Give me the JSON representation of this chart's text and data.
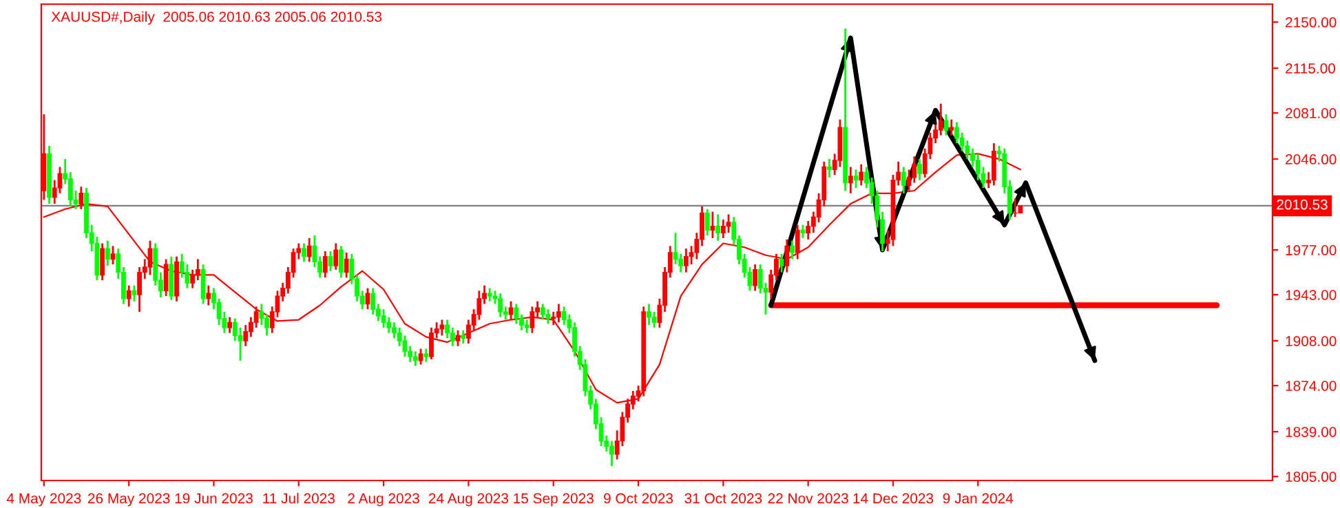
{
  "chart_data": {
    "type": "candlestick",
    "title": "XAUUSD#,Daily  2005.06 2010.63 2005.06 2010.53",
    "categories": [
      "4 May 2023",
      null,
      null,
      null,
      null,
      null,
      null,
      null,
      null,
      null,
      null,
      null,
      null,
      null,
      null,
      null,
      "26 May 2023",
      null,
      null,
      null,
      null,
      null,
      null,
      null,
      null,
      null,
      null,
      null,
      null,
      null,
      null,
      null,
      "19 Jun 2023",
      null,
      null,
      null,
      null,
      null,
      null,
      null,
      null,
      null,
      null,
      null,
      null,
      null,
      null,
      null,
      "11 Jul 2023",
      null,
      null,
      null,
      null,
      null,
      null,
      null,
      null,
      null,
      null,
      null,
      null,
      null,
      null,
      null,
      "2 Aug 2023",
      null,
      null,
      null,
      null,
      null,
      null,
      null,
      null,
      null,
      null,
      null,
      null,
      null,
      null,
      null,
      "24 Aug 2023",
      null,
      null,
      null,
      null,
      null,
      null,
      null,
      null,
      null,
      null,
      null,
      null,
      null,
      null,
      null,
      "15 Sep 2023",
      null,
      null,
      null,
      null,
      null,
      null,
      null,
      null,
      null,
      null,
      null,
      null,
      null,
      null,
      null,
      "9 Oct 2023",
      null,
      null,
      null,
      null,
      null,
      null,
      null,
      null,
      null,
      null,
      null,
      null,
      null,
      null,
      null,
      "31 Oct 2023",
      null,
      null,
      null,
      null,
      null,
      null,
      null,
      null,
      null,
      null,
      null,
      null,
      null,
      null,
      null,
      "22 Nov 2023",
      null,
      null,
      null,
      null,
      null,
      null,
      null,
      null,
      null,
      null,
      null,
      null,
      null,
      null,
      null,
      "14 Dec 2023",
      null,
      null,
      null,
      null,
      null,
      null,
      null,
      null,
      null,
      null,
      null,
      null,
      null,
      null,
      null,
      "9 Jan 2024",
      null,
      null,
      null,
      null,
      null,
      null,
      null,
      null,
      null,
      null,
      null,
      null,
      null,
      null,
      null,
      null,
      null,
      null,
      null,
      null,
      null,
      null,
      null,
      null,
      null,
      null,
      null,
      null,
      null,
      null,
      null,
      null,
      null,
      null,
      null,
      null,
      null,
      null,
      null,
      null,
      null,
      null,
      null,
      null,
      null,
      null,
      null,
      null,
      null,
      null,
      null,
      null,
      null,
      null,
      null
    ],
    "ohlc": [
      [
        2022,
        2080,
        2015,
        2050
      ],
      [
        2050,
        2056,
        2012,
        2017
      ],
      [
        2017,
        2030,
        2012,
        2024
      ],
      [
        2024,
        2040,
        2020,
        2035
      ],
      [
        2035,
        2046,
        2027,
        2031
      ],
      [
        2031,
        2036,
        2010,
        2015
      ],
      [
        2015,
        2022,
        2008,
        2012
      ],
      [
        2012,
        2025,
        2008,
        2020
      ],
      [
        2020,
        2024,
        1986,
        1990
      ],
      [
        1990,
        1996,
        1976,
        1982
      ],
      [
        1982,
        1987,
        1954,
        1958
      ],
      [
        1958,
        1982,
        1954,
        1978
      ],
      [
        1978,
        1984,
        1965,
        1970
      ],
      [
        1970,
        1980,
        1966,
        1974
      ],
      [
        1974,
        1978,
        1955,
        1960
      ],
      [
        1960,
        1964,
        1936,
        1940
      ],
      [
        1940,
        1950,
        1934,
        1946
      ],
      [
        1946,
        1950,
        1938,
        1943
      ],
      [
        1943,
        1964,
        1930,
        1960
      ],
      [
        1960,
        1970,
        1955,
        1964
      ],
      [
        1964,
        1984,
        1958,
        1978
      ],
      [
        1978,
        1982,
        1950,
        1954
      ],
      [
        1954,
        1960,
        1941,
        1946
      ],
      [
        1946,
        1970,
        1942,
        1966
      ],
      [
        1966,
        1972,
        1939,
        1942
      ],
      [
        1942,
        1972,
        1938,
        1968
      ],
      [
        1968,
        1974,
        1956,
        1960
      ],
      [
        1960,
        1966,
        1948,
        1952
      ],
      [
        1952,
        1962,
        1948,
        1958
      ],
      [
        1958,
        1970,
        1954,
        1962
      ],
      [
        1962,
        1966,
        1936,
        1940
      ],
      [
        1940,
        1950,
        1935,
        1944
      ],
      [
        1944,
        1948,
        1932,
        1937
      ],
      [
        1937,
        1940,
        1920,
        1925
      ],
      [
        1925,
        1930,
        1914,
        1918
      ],
      [
        1918,
        1926,
        1914,
        1922
      ],
      [
        1922,
        1925,
        1908,
        1912
      ],
      [
        1912,
        1918,
        1893,
        1908
      ],
      [
        1908,
        1920,
        1904,
        1915
      ],
      [
        1915,
        1926,
        1911,
        1922
      ],
      [
        1922,
        1934,
        1918,
        1930
      ],
      [
        1930,
        1936,
        1920,
        1925
      ],
      [
        1925,
        1928,
        1912,
        1918
      ],
      [
        1918,
        1934,
        1914,
        1930
      ],
      [
        1930,
        1946,
        1926,
        1942
      ],
      [
        1942,
        1952,
        1938,
        1948
      ],
      [
        1948,
        1964,
        1944,
        1960
      ],
      [
        1960,
        1978,
        1956,
        1975
      ],
      [
        1975,
        1982,
        1970,
        1978
      ],
      [
        1978,
        1982,
        1968,
        1972
      ],
      [
        1972,
        1986,
        1968,
        1980
      ],
      [
        1980,
        1988,
        1964,
        1968
      ],
      [
        1968,
        1972,
        1956,
        1960
      ],
      [
        1960,
        1976,
        1956,
        1972
      ],
      [
        1972,
        1976,
        1961,
        1965
      ],
      [
        1965,
        1982,
        1962,
        1977
      ],
      [
        1977,
        1980,
        1956,
        1960
      ],
      [
        1960,
        1975,
        1956,
        1970
      ],
      [
        1970,
        1974,
        1951,
        1955
      ],
      [
        1955,
        1958,
        1938,
        1942
      ],
      [
        1942,
        1946,
        1932,
        1936
      ],
      [
        1936,
        1948,
        1932,
        1944
      ],
      [
        1944,
        1948,
        1928,
        1932
      ],
      [
        1932,
        1936,
        1923,
        1927
      ],
      [
        1927,
        1932,
        1918,
        1922
      ],
      [
        1922,
        1926,
        1914,
        1918
      ],
      [
        1918,
        1922,
        1910,
        1914
      ],
      [
        1914,
        1918,
        1904,
        1908
      ],
      [
        1908,
        1912,
        1896,
        1900
      ],
      [
        1900,
        1904,
        1892,
        1896
      ],
      [
        1896,
        1900,
        1889,
        1893
      ],
      [
        1893,
        1902,
        1890,
        1898
      ],
      [
        1898,
        1902,
        1892,
        1896
      ],
      [
        1896,
        1918,
        1894,
        1914
      ],
      [
        1914,
        1922,
        1910,
        1917
      ],
      [
        1917,
        1924,
        1912,
        1920
      ],
      [
        1920,
        1924,
        1910,
        1914
      ],
      [
        1914,
        1918,
        1904,
        1908
      ],
      [
        1908,
        1916,
        1904,
        1912
      ],
      [
        1912,
        1916,
        1906,
        1910
      ],
      [
        1910,
        1924,
        1906,
        1920
      ],
      [
        1920,
        1932,
        1916,
        1928
      ],
      [
        1928,
        1946,
        1924,
        1940
      ],
      [
        1940,
        1950,
        1936,
        1944
      ],
      [
        1944,
        1948,
        1938,
        1942
      ],
      [
        1942,
        1946,
        1936,
        1940
      ],
      [
        1940,
        1944,
        1926,
        1930
      ],
      [
        1930,
        1934,
        1924,
        1928
      ],
      [
        1928,
        1938,
        1924,
        1933
      ],
      [
        1933,
        1936,
        1921,
        1925
      ],
      [
        1925,
        1928,
        1916,
        1920
      ],
      [
        1920,
        1924,
        1914,
        1918
      ],
      [
        1918,
        1934,
        1914,
        1930
      ],
      [
        1930,
        1938,
        1926,
        1933
      ],
      [
        1933,
        1936,
        1924,
        1928
      ],
      [
        1928,
        1932,
        1921,
        1925
      ],
      [
        1925,
        1930,
        1920,
        1926
      ],
      [
        1926,
        1936,
        1922,
        1930
      ],
      [
        1930,
        1934,
        1920,
        1924
      ],
      [
        1924,
        1928,
        1914,
        1918
      ],
      [
        1918,
        1922,
        1896,
        1900
      ],
      [
        1900,
        1904,
        1886,
        1890
      ],
      [
        1890,
        1894,
        1866,
        1870
      ],
      [
        1870,
        1874,
        1856,
        1860
      ],
      [
        1860,
        1864,
        1841,
        1845
      ],
      [
        1845,
        1850,
        1828,
        1832
      ],
      [
        1832,
        1836,
        1824,
        1828
      ],
      [
        1828,
        1832,
        1813,
        1822
      ],
      [
        1822,
        1840,
        1818,
        1832
      ],
      [
        1832,
        1854,
        1828,
        1850
      ],
      [
        1850,
        1864,
        1846,
        1860
      ],
      [
        1860,
        1870,
        1856,
        1866
      ],
      [
        1866,
        1874,
        1862,
        1870
      ],
      [
        1870,
        1934,
        1866,
        1930
      ],
      [
        1930,
        1936,
        1920,
        1926
      ],
      [
        1926,
        1930,
        1918,
        1922
      ],
      [
        1922,
        1940,
        1918,
        1935
      ],
      [
        1935,
        1964,
        1930,
        1960
      ],
      [
        1960,
        1980,
        1956,
        1975
      ],
      [
        1975,
        1990,
        1966,
        1970
      ],
      [
        1970,
        1974,
        1960,
        1965
      ],
      [
        1965,
        1978,
        1960,
        1972
      ],
      [
        1972,
        1980,
        1966,
        1975
      ],
      [
        1975,
        1990,
        1970,
        1985
      ],
      [
        1985,
        2010,
        1980,
        2005
      ],
      [
        2005,
        2008,
        1988,
        1992
      ],
      [
        1992,
        2006,
        1986,
        1995
      ],
      [
        1995,
        2004,
        1984,
        1990
      ],
      [
        1990,
        2000,
        1986,
        1995
      ],
      [
        1995,
        2004,
        1990,
        1998
      ],
      [
        1998,
        2002,
        1981,
        1985
      ],
      [
        1985,
        1988,
        1966,
        1970
      ],
      [
        1970,
        1974,
        1956,
        1960
      ],
      [
        1960,
        1964,
        1946,
        1950
      ],
      [
        1950,
        1966,
        1946,
        1962
      ],
      [
        1962,
        1966,
        1944,
        1948
      ],
      [
        1948,
        1952,
        1928,
        1945
      ],
      [
        1945,
        1962,
        1940,
        1958
      ],
      [
        1958,
        1974,
        1954,
        1970
      ],
      [
        1970,
        1974,
        1960,
        1965
      ],
      [
        1965,
        1985,
        1960,
        1980
      ],
      [
        1980,
        1984,
        1970,
        1975
      ],
      [
        1975,
        1996,
        1970,
        1992
      ],
      [
        1992,
        1996,
        1986,
        1990
      ],
      [
        1990,
        1999,
        1985,
        1995
      ],
      [
        1995,
        2006,
        1990,
        2002
      ],
      [
        2002,
        2020,
        1998,
        2015
      ],
      [
        2015,
        2044,
        2010,
        2040
      ],
      [
        2040,
        2046,
        2032,
        2038
      ],
      [
        2038,
        2050,
        2034,
        2045
      ],
      [
        2045,
        2076,
        2040,
        2070
      ],
      [
        2070,
        2145,
        2022,
        2028
      ],
      [
        2028,
        2040,
        2020,
        2033
      ],
      [
        2033,
        2038,
        2024,
        2030
      ],
      [
        2030,
        2042,
        2026,
        2036
      ],
      [
        2036,
        2040,
        2024,
        2028
      ],
      [
        2028,
        2032,
        2012,
        2018
      ],
      [
        2018,
        2022,
        1994,
        2000
      ],
      [
        2000,
        2006,
        1976,
        1982
      ],
      [
        1982,
        1992,
        1976,
        1985
      ],
      [
        1985,
        2034,
        1980,
        2030
      ],
      [
        2030,
        2044,
        2026,
        2036
      ],
      [
        2036,
        2040,
        2020,
        2026
      ],
      [
        2026,
        2038,
        2022,
        2032
      ],
      [
        2032,
        2048,
        2028,
        2042
      ],
      [
        2042,
        2046,
        2030,
        2035
      ],
      [
        2035,
        2054,
        2032,
        2050
      ],
      [
        2050,
        2066,
        2046,
        2062
      ],
      [
        2062,
        2072,
        2058,
        2068
      ],
      [
        2068,
        2088,
        2064,
        2075
      ],
      [
        2075,
        2080,
        2064,
        2068
      ],
      [
        2068,
        2076,
        2064,
        2070
      ],
      [
        2070,
        2074,
        2058,
        2062
      ],
      [
        2062,
        2066,
        2052,
        2056
      ],
      [
        2056,
        2060,
        2046,
        2050
      ],
      [
        2050,
        2054,
        2040,
        2045
      ],
      [
        2045,
        2050,
        2030,
        2035
      ],
      [
        2035,
        2040,
        2024,
        2028
      ],
      [
        2028,
        2036,
        2024,
        2030
      ],
      [
        2030,
        2058,
        2026,
        2052
      ],
      [
        2052,
        2056,
        2044,
        2050
      ],
      [
        2050,
        2054,
        2020,
        2025
      ],
      [
        2025,
        2030,
        2000,
        2005
      ],
      [
        2005,
        2016,
        2002,
        2005.06
      ],
      [
        2005.06,
        2010.63,
        2005.06,
        2010.53
      ],
      null,
      null,
      null,
      null,
      null,
      null,
      null,
      null,
      null,
      null,
      null,
      null,
      null,
      null,
      null,
      null,
      null,
      null,
      null,
      null,
      null,
      null,
      null,
      null,
      null,
      null,
      null,
      null,
      null,
      null,
      null,
      null,
      null,
      null,
      null,
      null,
      null,
      null,
      null,
      null,
      null,
      null,
      null,
      null,
      null,
      null,
      null
    ],
    "colors": [
      "#ff0000",
      "#00ff00",
      "#ff0000",
      "#ff0000",
      "#00ff00",
      "#00ff00",
      "#00ff00",
      "#ff0000",
      "#00ff00",
      "#00ff00",
      "#00ff00",
      "#ff0000",
      "#00ff00",
      "#ff0000",
      "#00ff00",
      "#00ff00",
      "#ff0000",
      "#00ff00",
      "#ff0000",
      "#ff0000",
      "#ff0000",
      "#00ff00",
      "#00ff00",
      "#ff0000",
      "#00ff00",
      "#ff0000",
      "#00ff00",
      "#00ff00",
      "#ff0000",
      "#ff0000",
      "#00ff00",
      "#ff0000",
      "#00ff00",
      "#00ff00",
      "#00ff00",
      "#ff0000",
      "#00ff00",
      "#00ff00",
      "#ff0000",
      "#ff0000",
      "#ff0000",
      "#00ff00",
      "#00ff00",
      "#ff0000",
      "#ff0000",
      "#ff0000",
      "#ff0000",
      "#ff0000",
      "#ff0000",
      "#00ff00",
      "#ff0000",
      "#00ff00",
      "#00ff00",
      "#ff0000",
      "#00ff00",
      "#ff0000",
      "#00ff00",
      "#ff0000",
      "#00ff00",
      "#00ff00",
      "#00ff00",
      "#ff0000",
      "#00ff00",
      "#00ff00",
      "#00ff00",
      "#00ff00",
      "#00ff00",
      "#00ff00",
      "#00ff00",
      "#00ff00",
      "#00ff00",
      "#ff0000",
      "#00ff00",
      "#ff0000",
      "#ff0000",
      "#ff0000",
      "#00ff00",
      "#00ff00",
      "#ff0000",
      "#00ff00",
      "#ff0000",
      "#ff0000",
      "#ff0000",
      "#ff0000",
      "#00ff00",
      "#00ff00",
      "#00ff00",
      "#00ff00",
      "#ff0000",
      "#00ff00",
      "#00ff00",
      "#00ff00",
      "#ff0000",
      "#ff0000",
      "#00ff00",
      "#00ff00",
      "#ff0000",
      "#ff0000",
      "#00ff00",
      "#00ff00",
      "#00ff00",
      "#00ff00",
      "#00ff00",
      "#00ff00",
      "#00ff00",
      "#00ff00",
      "#00ff00",
      "#00ff00",
      "#ff0000",
      "#ff0000",
      "#ff0000",
      "#ff0000",
      "#ff0000",
      "#ff0000",
      "#00ff00",
      "#00ff00",
      "#ff0000",
      "#ff0000",
      "#ff0000",
      "#00ff00",
      "#00ff00",
      "#ff0000",
      "#ff0000",
      "#ff0000",
      "#ff0000",
      "#00ff00",
      "#ff0000",
      "#00ff00",
      "#ff0000",
      "#ff0000",
      "#00ff00",
      "#00ff00",
      "#00ff00",
      "#00ff00",
      "#ff0000",
      "#00ff00",
      "#00ff00",
      "#ff0000",
      "#ff0000",
      "#00ff00",
      "#ff0000",
      "#00ff00",
      "#ff0000",
      "#00ff00",
      "#ff0000",
      "#ff0000",
      "#ff0000",
      "#ff0000",
      "#00ff00",
      "#ff0000",
      "#ff0000",
      "#00ff00",
      "#ff0000",
      "#00ff00",
      "#ff0000",
      "#00ff00",
      "#00ff00",
      "#00ff00",
      "#00ff00",
      "#ff0000",
      "#ff0000",
      "#ff0000",
      "#00ff00",
      "#ff0000",
      "#ff0000",
      "#00ff00",
      "#ff0000",
      "#ff0000",
      "#ff0000",
      "#ff0000",
      "#00ff00",
      "#ff0000",
      "#00ff00",
      "#00ff00",
      "#00ff00",
      "#00ff00",
      "#00ff00",
      "#00ff00",
      "#ff0000",
      "#ff0000",
      "#00ff00",
      "#00ff00",
      "#00ff00",
      "#ff0000",
      "#ff0000",
      null,
      null,
      null,
      null,
      null,
      null,
      null,
      null,
      null,
      null,
      null,
      null,
      null,
      null,
      null,
      null,
      null,
      null,
      null,
      null,
      null,
      null,
      null,
      null,
      null,
      null,
      null,
      null,
      null,
      null,
      null,
      null,
      null,
      null,
      null,
      null,
      null,
      null,
      null,
      null,
      null,
      null,
      null,
      null,
      null,
      null,
      null
    ],
    "series": [
      {
        "type": "line",
        "color": "#ff0000",
        "values": [
          2002,
          null,
          null,
          null,
          2008,
          null,
          null,
          null,
          2012,
          null,
          null,
          null,
          2010,
          null,
          null,
          null,
          1989,
          null,
          null,
          null,
          1968,
          null,
          null,
          null,
          1961,
          null,
          null,
          null,
          1958,
          null,
          null,
          null,
          1958,
          null,
          null,
          null,
          1945,
          null,
          null,
          null,
          1932,
          null,
          null,
          null,
          1923,
          null,
          null,
          null,
          1924,
          null,
          null,
          null,
          1935,
          null,
          null,
          null,
          1949,
          null,
          null,
          null,
          1961,
          null,
          null,
          null,
          1947,
          null,
          null,
          null,
          1921,
          null,
          null,
          null,
          1911,
          null,
          null,
          null,
          1907,
          null,
          null,
          null,
          1914,
          null,
          null,
          null,
          1921,
          null,
          null,
          null,
          1924,
          null,
          null,
          null,
          1926,
          null,
          null,
          null,
          1924,
          null,
          null,
          null,
          1900,
          null,
          null,
          null,
          1871,
          null,
          null,
          null,
          1861,
          null,
          null,
          null,
          1864,
          null,
          null,
          null,
          1890,
          null,
          null,
          null,
          1942,
          null,
          null,
          null,
          1966,
          null,
          null,
          null,
          1982,
          null,
          null,
          null,
          1979,
          null,
          null,
          null,
          1973,
          null,
          null,
          null,
          1970,
          null,
          null,
          null,
          1979,
          null,
          null,
          null,
          1996,
          null,
          null,
          null,
          2012,
          null,
          null,
          null,
          2020,
          null,
          null,
          null,
          2020,
          null,
          null,
          null,
          2022,
          null,
          null,
          null,
          2036,
          null,
          null,
          null,
          2049,
          null,
          null,
          null,
          2050,
          null,
          null,
          null,
          2046,
          null,
          null,
          null,
          2038,
          null,
          null,
          null,
          null,
          null,
          null,
          null,
          null,
          null,
          null,
          null,
          null,
          null,
          null,
          null,
          null,
          null,
          null,
          null,
          null,
          null,
          null,
          null,
          null,
          null,
          null,
          null,
          null,
          null,
          null,
          null,
          null,
          null,
          null,
          null,
          null,
          null,
          null,
          null,
          null,
          null,
          null,
          null,
          null,
          null,
          null,
          null
        ]
      },
      {
        "type": "line",
        "color": "#ff0000",
        "values": [
          null,
          null,
          null,
          null,
          null,
          null,
          null,
          null,
          null,
          null,
          null,
          null,
          null,
          null,
          null,
          null,
          null,
          null,
          null,
          null,
          null,
          null,
          null,
          null,
          null,
          null,
          null,
          null,
          null,
          null,
          null,
          null,
          null,
          null,
          null,
          null,
          null,
          null,
          null,
          null,
          null,
          null,
          null,
          null,
          null,
          null,
          null,
          null,
          null,
          null,
          null,
          null,
          null,
          null,
          null,
          null,
          null,
          null,
          null,
          null,
          null,
          null,
          null,
          null,
          null,
          null,
          null,
          null,
          null,
          null,
          null,
          null,
          null,
          null,
          null,
          null,
          null,
          null,
          null,
          null,
          null,
          null,
          null,
          null,
          null,
          null,
          null,
          null,
          null,
          null,
          null,
          null,
          null,
          null,
          null,
          null,
          null,
          null,
          null,
          null,
          null,
          null,
          null,
          null,
          null,
          null,
          null,
          null,
          null,
          null,
          null,
          null,
          null,
          null,
          null,
          null,
          null,
          null,
          null,
          null,
          null,
          null,
          null,
          null,
          null,
          null,
          null,
          null,
          null,
          null,
          null,
          null,
          null,
          null,
          null,
          null,
          null,
          1935,
          1935,
          1935,
          1935,
          1935,
          1935,
          1935,
          1935,
          1935,
          1935,
          1935,
          1935,
          1935,
          1935,
          1935,
          1935,
          1935,
          1935,
          1935,
          1935,
          1935,
          1935,
          1935,
          1935,
          1935,
          1935,
          1935,
          1935,
          1935,
          1935,
          1935,
          1935,
          1935,
          1935,
          1935,
          1935,
          1935,
          1935,
          1935,
          1935,
          1935,
          1935,
          1935,
          1935,
          1935,
          1935,
          1935,
          1935,
          1935,
          1935,
          1935,
          1935,
          1935,
          1935,
          1935,
          1935,
          1935,
          1935,
          1935,
          1935,
          1935,
          1935,
          1935,
          1935,
          1935,
          1935,
          1935,
          1935,
          1935,
          1935,
          1935,
          1935,
          1935,
          1935,
          1935,
          1935,
          1935,
          1935,
          1935,
          1935,
          1935,
          1935,
          1935,
          1935,
          1935,
          null,
          null,
          null,
          null,
          null,
          null,
          null,
          null,
          null,
          null
        ]
      },
      {
        "type": "line",
        "color": "#000000",
        "values": [
          null,
          null,
          null,
          null,
          null,
          null,
          null,
          null,
          null,
          null,
          null,
          null,
          null,
          null,
          null,
          null,
          null,
          null,
          null,
          null,
          null,
          null,
          null,
          null,
          null,
          null,
          null,
          null,
          null,
          null,
          null,
          null,
          null,
          null,
          null,
          null,
          null,
          null,
          null,
          null,
          null,
          null,
          null,
          null,
          null,
          null,
          null,
          null,
          null,
          null,
          null,
          null,
          null,
          null,
          null,
          null,
          null,
          null,
          null,
          null,
          null,
          null,
          null,
          null,
          null,
          null,
          null,
          null,
          null,
          null,
          null,
          null,
          null,
          null,
          null,
          null,
          null,
          null,
          null,
          null,
          null,
          null,
          null,
          null,
          null,
          null,
          null,
          null,
          null,
          null,
          null,
          null,
          null,
          null,
          null,
          null,
          null,
          null,
          null,
          null,
          null,
          null,
          null,
          null,
          null,
          null,
          null,
          null,
          null,
          null,
          null,
          null,
          null,
          null,
          null,
          null,
          null,
          null,
          null,
          null,
          null,
          null,
          null,
          null,
          null,
          null,
          null,
          null,
          null,
          null,
          null,
          null,
          null,
          null,
          null,
          null,
          null,
          1935,
          null,
          null,
          null,
          null,
          null,
          null,
          null,
          null,
          null,
          null,
          null,
          null,
          null,
          null,
          2138,
          null,
          null,
          null,
          null,
          null,
          1977,
          null,
          null,
          null,
          null,
          null,
          null,
          null,
          null,
          null,
          2083,
          null,
          null,
          null,
          null,
          null,
          null,
          null,
          null,
          null,
          null,
          null,
          null,
          1996,
          null,
          null,
          null,
          2028,
          null,
          null,
          null,
          null,
          null,
          null,
          null,
          null,
          null,
          null,
          null,
          null,
          1893,
          null,
          null,
          null,
          null,
          null,
          null,
          null,
          null,
          null,
          null,
          null,
          null,
          null,
          null,
          null,
          null,
          null,
          null,
          null,
          null,
          null,
          null,
          null,
          null,
          null,
          null,
          null,
          null,
          null,
          null,
          null,
          null,
          null
        ]
      }
    ],
    "ylim": [
      1802,
      2163.6
    ],
    "yticks": [
      {
        "value": 1805,
        "label": "1805.00"
      },
      {
        "value": 1839,
        "label": "1839.00"
      },
      {
        "value": 1874,
        "label": "1874.00"
      },
      {
        "value": 1908,
        "label": "1908.00"
      },
      {
        "value": 1943,
        "label": "1943.00"
      },
      {
        "value": 1977,
        "label": "1977.00"
      },
      {
        "value": 2046,
        "label": "2046.00"
      },
      {
        "value": 2081,
        "label": "2081.00"
      },
      {
        "value": 2115,
        "label": "2115.00"
      },
      {
        "value": 2150,
        "label": "2150.00"
      }
    ],
    "ref_lines": [
      {
        "axis": "y",
        "value": 2010.53,
        "label": "2010.53",
        "color": "#808080"
      }
    ]
  }
}
